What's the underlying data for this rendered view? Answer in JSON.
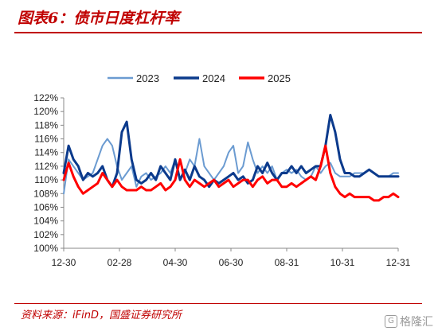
{
  "title": "图表6：债市日度杠杆率",
  "source": "资料来源：iFinD，国盛证券研究所",
  "watermark": {
    "icon": "logo-mark-icon",
    "text": "格隆汇"
  },
  "chart_data": {
    "type": "line",
    "title": "图表6：债市日度杠杆率",
    "xlabel": "",
    "ylabel": "",
    "ylim": [
      100,
      122
    ],
    "y_unit": "%",
    "y_ticks": [
      100,
      102,
      104,
      106,
      108,
      110,
      112,
      114,
      116,
      118,
      120,
      122
    ],
    "y_tick_labels": [
      "100%",
      "102%",
      "104%",
      "106%",
      "108%",
      "110%",
      "112%",
      "114%",
      "116%",
      "118%",
      "120%",
      "122%"
    ],
    "x_range": [
      "12-30",
      "12-31"
    ],
    "x_tick_labels": [
      "12-30",
      "02-28",
      "04-30",
      "06-30",
      "08-31",
      "10-31",
      "12-31"
    ],
    "legend": "top-center",
    "grid": false,
    "series": [
      {
        "name": "2023",
        "color": "#6b9bd1",
        "width": 2,
        "points": [
          [
            0,
            108
          ],
          [
            1,
            113
          ],
          [
            2,
            112
          ],
          [
            3,
            111
          ],
          [
            4,
            110
          ],
          [
            5,
            110.5
          ],
          [
            6,
            111
          ],
          [
            7,
            113
          ],
          [
            8,
            115
          ],
          [
            9,
            116
          ],
          [
            10,
            115
          ],
          [
            11,
            112
          ],
          [
            12,
            110
          ],
          [
            13,
            111
          ],
          [
            14,
            112
          ],
          [
            15,
            109
          ],
          [
            16,
            110.5
          ],
          [
            17,
            111
          ],
          [
            18,
            110
          ],
          [
            19,
            110.5
          ],
          [
            20,
            111
          ],
          [
            21,
            112
          ],
          [
            22,
            111
          ],
          [
            23,
            113
          ],
          [
            24,
            110
          ],
          [
            25,
            111
          ],
          [
            26,
            113
          ],
          [
            27,
            112
          ],
          [
            28,
            116
          ],
          [
            29,
            112
          ],
          [
            30,
            111
          ],
          [
            31,
            110
          ],
          [
            32,
            111
          ],
          [
            33,
            112
          ],
          [
            34,
            114
          ],
          [
            35,
            115
          ],
          [
            36,
            111
          ],
          [
            37,
            112
          ],
          [
            38,
            115.5
          ],
          [
            39,
            113
          ],
          [
            40,
            111
          ],
          [
            41,
            112
          ],
          [
            42,
            111
          ],
          [
            43,
            112
          ],
          [
            44,
            110
          ],
          [
            45,
            111
          ],
          [
            46,
            111.5
          ],
          [
            47,
            111
          ],
          [
            48,
            111.5
          ],
          [
            49,
            110.5
          ],
          [
            50,
            110
          ],
          [
            51,
            110.5
          ],
          [
            52,
            112
          ],
          [
            53,
            111
          ],
          [
            54,
            112
          ],
          [
            55,
            112.5
          ],
          [
            56,
            111
          ],
          [
            57,
            110.5
          ],
          [
            58,
            110.5
          ],
          [
            59,
            110.5
          ],
          [
            60,
            111
          ],
          [
            61,
            111
          ],
          [
            62,
            111
          ],
          [
            63,
            111.5
          ],
          [
            64,
            111
          ],
          [
            65,
            110.5
          ],
          [
            66,
            110.5
          ],
          [
            67,
            110.5
          ],
          [
            68,
            111
          ],
          [
            69,
            111
          ]
        ]
      },
      {
        "name": "2024",
        "color": "#0b3a8c",
        "width": 3,
        "points": [
          [
            0,
            111
          ],
          [
            1,
            115
          ],
          [
            2,
            113
          ],
          [
            3,
            112
          ],
          [
            4,
            110
          ],
          [
            5,
            111
          ],
          [
            6,
            110.5
          ],
          [
            7,
            111
          ],
          [
            8,
            112
          ],
          [
            9,
            110
          ],
          [
            10,
            109
          ],
          [
            11,
            111
          ],
          [
            12,
            117
          ],
          [
            13,
            118.5
          ],
          [
            14,
            113
          ],
          [
            15,
            110
          ],
          [
            16,
            109.5
          ],
          [
            17,
            110
          ],
          [
            18,
            111
          ],
          [
            19,
            110
          ],
          [
            20,
            112
          ],
          [
            21,
            111
          ],
          [
            22,
            110
          ],
          [
            23,
            113
          ],
          [
            24,
            110
          ],
          [
            25,
            111.5
          ],
          [
            26,
            110
          ],
          [
            27,
            112
          ],
          [
            28,
            110.5
          ],
          [
            29,
            110
          ],
          [
            30,
            109
          ],
          [
            31,
            110
          ],
          [
            32,
            109.5
          ],
          [
            33,
            110
          ],
          [
            34,
            110.5
          ],
          [
            35,
            111
          ],
          [
            36,
            110
          ],
          [
            37,
            110.5
          ],
          [
            38,
            109.5
          ],
          [
            39,
            110
          ],
          [
            40,
            112
          ],
          [
            41,
            111
          ],
          [
            42,
            112.5
          ],
          [
            43,
            111
          ],
          [
            44,
            110
          ],
          [
            45,
            111
          ],
          [
            46,
            111
          ],
          [
            47,
            112
          ],
          [
            48,
            111
          ],
          [
            49,
            112
          ],
          [
            50,
            111
          ],
          [
            51,
            111.5
          ],
          [
            52,
            112
          ],
          [
            53,
            112
          ],
          [
            54,
            115
          ],
          [
            55,
            119.5
          ],
          [
            56,
            117
          ],
          [
            57,
            113
          ],
          [
            58,
            111
          ],
          [
            59,
            111
          ],
          [
            60,
            110.5
          ],
          [
            61,
            110.5
          ],
          [
            62,
            111
          ],
          [
            63,
            111.5
          ],
          [
            64,
            111
          ],
          [
            65,
            110.5
          ],
          [
            66,
            110.5
          ],
          [
            67,
            110.5
          ],
          [
            68,
            110.5
          ],
          [
            69,
            110.5
          ]
        ]
      },
      {
        "name": "2025",
        "color": "#ff0000",
        "width": 3,
        "points": [
          [
            0,
            110
          ],
          [
            1,
            112.5
          ],
          [
            2,
            110.5
          ],
          [
            3,
            109
          ],
          [
            4,
            108
          ],
          [
            5,
            108.5
          ],
          [
            6,
            109
          ],
          [
            7,
            109.5
          ],
          [
            8,
            111
          ],
          [
            9,
            110
          ],
          [
            10,
            109
          ],
          [
            11,
            110
          ],
          [
            12,
            109
          ],
          [
            13,
            108.5
          ],
          [
            14,
            108.5
          ],
          [
            15,
            108.5
          ],
          [
            16,
            109
          ],
          [
            17,
            108.5
          ],
          [
            18,
            108.5
          ],
          [
            19,
            109
          ],
          [
            20,
            109.5
          ],
          [
            21,
            108.5
          ],
          [
            22,
            109
          ],
          [
            23,
            110
          ],
          [
            24,
            113
          ],
          [
            25,
            110
          ],
          [
            26,
            109
          ],
          [
            27,
            110
          ],
          [
            28,
            109.5
          ],
          [
            29,
            109
          ],
          [
            30,
            109.5
          ],
          [
            31,
            110
          ],
          [
            32,
            109
          ],
          [
            33,
            109.5
          ],
          [
            34,
            110
          ],
          [
            35,
            109
          ],
          [
            36,
            109.5
          ],
          [
            37,
            110
          ],
          [
            38,
            110
          ],
          [
            39,
            109
          ],
          [
            40,
            110
          ],
          [
            41,
            110.5
          ],
          [
            42,
            109.5
          ],
          [
            43,
            110
          ],
          [
            44,
            110
          ],
          [
            45,
            109
          ],
          [
            46,
            109
          ],
          [
            47,
            109.5
          ],
          [
            48,
            109
          ],
          [
            49,
            109.5
          ],
          [
            50,
            110
          ],
          [
            51,
            110.5
          ],
          [
            52,
            110
          ],
          [
            53,
            112
          ],
          [
            54,
            115
          ],
          [
            55,
            111
          ],
          [
            56,
            109
          ],
          [
            57,
            108
          ],
          [
            58,
            107.5
          ],
          [
            59,
            108
          ],
          [
            60,
            107.5
          ],
          [
            61,
            107.5
          ],
          [
            62,
            107.5
          ],
          [
            63,
            107.5
          ],
          [
            64,
            107
          ],
          [
            65,
            107
          ],
          [
            66,
            107.5
          ],
          [
            67,
            107.5
          ],
          [
            68,
            108
          ],
          [
            69,
            107.5
          ]
        ]
      }
    ]
  }
}
